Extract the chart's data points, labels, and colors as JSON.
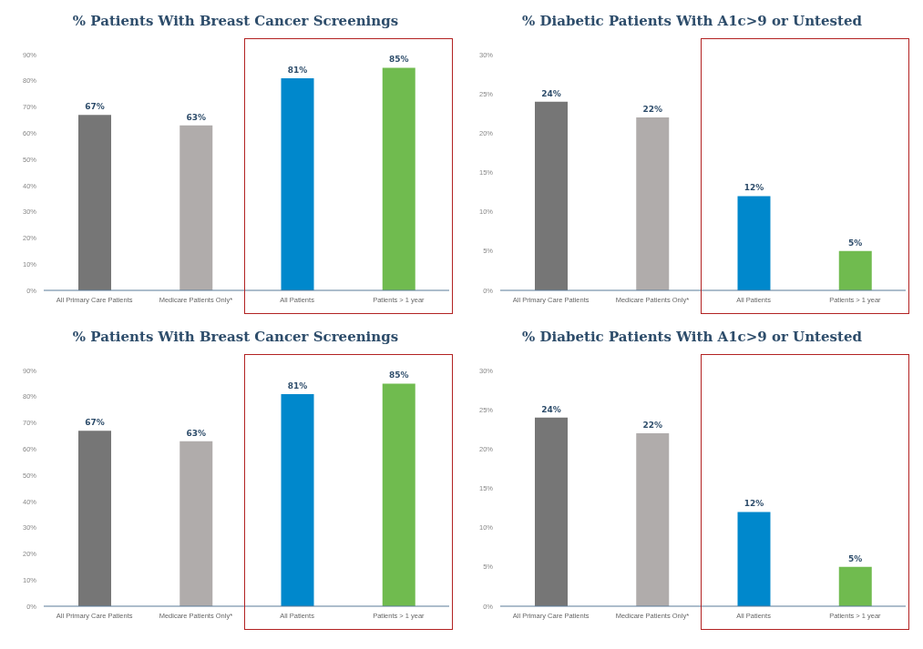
{
  "chart_data": [
    {
      "type": "bar",
      "title": "% Patients With Breast Cancer Screenings",
      "categories": [
        "All Primary Care Patients",
        "Medicare Patients Only*",
        "All Patients",
        "Patients > 1 year"
      ],
      "values": [
        67,
        63,
        81,
        85
      ],
      "colors": [
        "#767676",
        "#b0acab",
        "#0088cc",
        "#70bb4f"
      ],
      "value_labels": [
        "67%",
        "63%",
        "81%",
        "85%"
      ],
      "ylim": [
        0,
        90
      ],
      "yticks": [
        {
          "value": 0,
          "label": "0%"
        },
        {
          "value": 10,
          "label": "10%"
        },
        {
          "value": 20,
          "label": "20%"
        },
        {
          "value": 30,
          "label": "30%"
        },
        {
          "value": 40,
          "label": "40%"
        },
        {
          "value": 50,
          "label": "50%"
        },
        {
          "value": 60,
          "label": "60%"
        },
        {
          "value": 70,
          "label": "70%"
        },
        {
          "value": 80,
          "label": "80%"
        },
        {
          "value": 90,
          "label": "90%"
        }
      ],
      "grid": false,
      "legend": false
    },
    {
      "type": "bar",
      "title": "% Diabetic Patients With A1c>9 or Untested",
      "categories": [
        "All Primary Care Patients",
        "Medicare Patients Only*",
        "All Patients",
        "Patients > 1 year"
      ],
      "values": [
        24,
        22,
        12,
        5
      ],
      "colors": [
        "#767676",
        "#b0acab",
        "#0088cc",
        "#70bb4f"
      ],
      "value_labels": [
        "24%",
        "22%",
        "12%",
        "5%"
      ],
      "ylim": [
        0,
        30
      ],
      "yticks": [
        {
          "value": 0,
          "label": "0%"
        },
        {
          "value": 5,
          "label": "5%"
        },
        {
          "value": 10,
          "label": "10%"
        },
        {
          "value": 15,
          "label": "15%"
        },
        {
          "value": 20,
          "label": "20%"
        },
        {
          "value": 25,
          "label": "25%"
        },
        {
          "value": 30,
          "label": "30%"
        }
      ],
      "grid": false,
      "legend": false
    },
    {
      "type": "bar",
      "title": "% Patients With Breast Cancer Screenings",
      "categories": [
        "All Primary Care Patients",
        "Medicare Patients Only*",
        "All Patients",
        "Patients > 1 year"
      ],
      "values": [
        67,
        63,
        81,
        85
      ],
      "colors": [
        "#767676",
        "#b0acab",
        "#0088cc",
        "#70bb4f"
      ],
      "value_labels": [
        "67%",
        "63%",
        "81%",
        "85%"
      ],
      "ylim": [
        0,
        90
      ],
      "yticks": [
        {
          "value": 0,
          "label": "0%"
        },
        {
          "value": 10,
          "label": "10%"
        },
        {
          "value": 20,
          "label": "20%"
        },
        {
          "value": 30,
          "label": "30%"
        },
        {
          "value": 40,
          "label": "40%"
        },
        {
          "value": 50,
          "label": "50%"
        },
        {
          "value": 60,
          "label": "60%"
        },
        {
          "value": 70,
          "label": "70%"
        },
        {
          "value": 80,
          "label": "80%"
        },
        {
          "value": 90,
          "label": "90%"
        }
      ],
      "grid": false,
      "legend": false
    },
    {
      "type": "bar",
      "title": "% Diabetic Patients With A1c>9 or Untested",
      "categories": [
        "All Primary Care Patients",
        "Medicare Patients Only*",
        "All Patients",
        "Patients > 1 year"
      ],
      "values": [
        24,
        22,
        12,
        5
      ],
      "colors": [
        "#767676",
        "#b0acab",
        "#0088cc",
        "#70bb4f"
      ],
      "value_labels": [
        "24%",
        "22%",
        "12%",
        "5%"
      ],
      "ylim": [
        0,
        30
      ],
      "yticks": [
        {
          "value": 0,
          "label": "0%"
        },
        {
          "value": 5,
          "label": "5%"
        },
        {
          "value": 10,
          "label": "10%"
        },
        {
          "value": 15,
          "label": "15%"
        },
        {
          "value": 20,
          "label": "20%"
        },
        {
          "value": 25,
          "label": "25%"
        },
        {
          "value": 30,
          "label": "30%"
        }
      ],
      "grid": false,
      "legend": false
    }
  ]
}
